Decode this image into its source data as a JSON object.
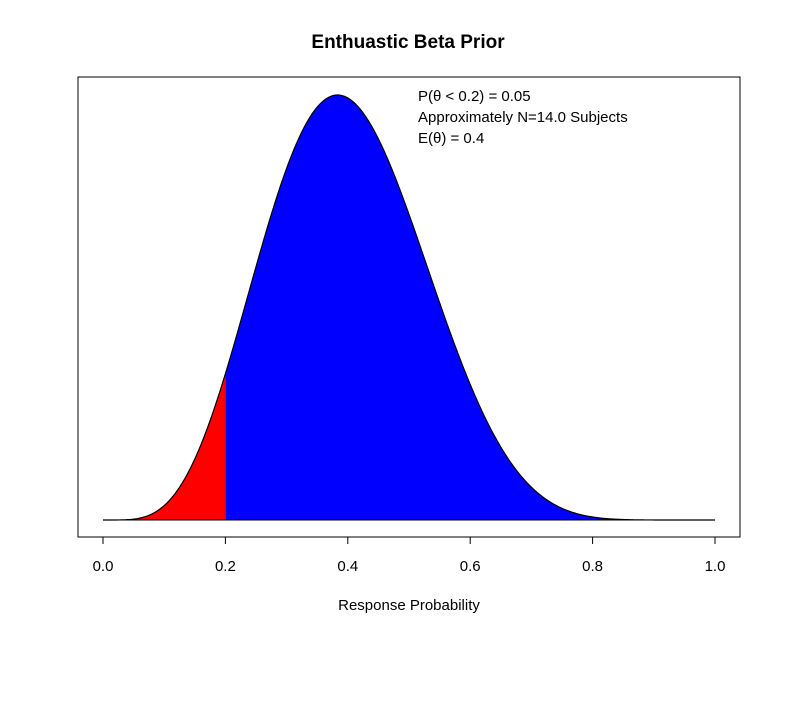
{
  "chart_data": {
    "type": "area",
    "title": "Enthuastic Beta Prior",
    "xlabel": "Response Probability",
    "ylabel": "",
    "xlim": [
      0,
      1
    ],
    "x_ticks": [
      "0.0",
      "0.2",
      "0.4",
      "0.6",
      "0.8",
      "1.0"
    ],
    "y_ticks_shown": false,
    "distribution": {
      "family": "beta",
      "alpha": 5.6,
      "beta": 8.4
    },
    "shaded_threshold": 0.2,
    "colors": {
      "lower_tail": "#ff0000",
      "body": "#0000ff",
      "outline": "#000000"
    },
    "annotations": [
      "P(θ < 0.2) = 0.05",
      "Approximately N=14.0 Subjects",
      "E(θ) = 0.4"
    ]
  }
}
